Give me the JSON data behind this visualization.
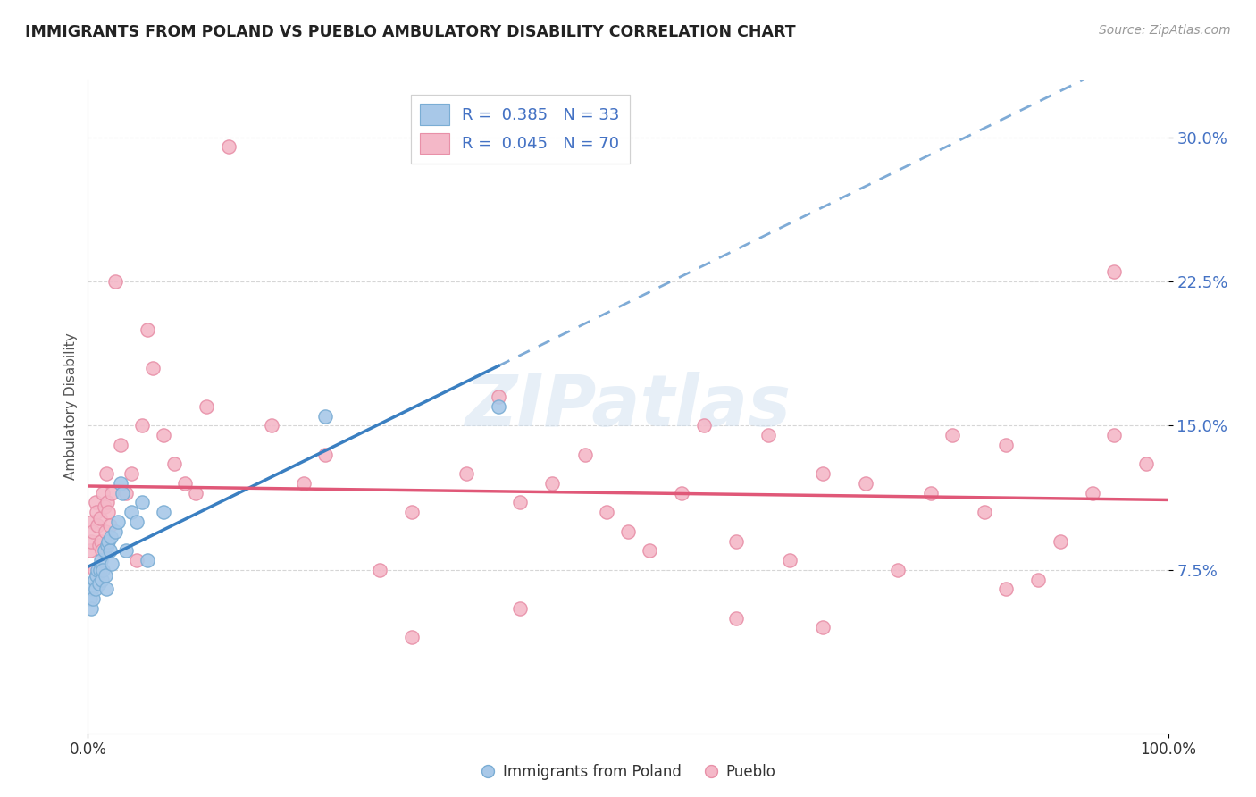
{
  "title": "IMMIGRANTS FROM POLAND VS PUEBLO AMBULATORY DISABILITY CORRELATION CHART",
  "source": "Source: ZipAtlas.com",
  "ylabel": "Ambulatory Disability",
  "legend_blue_label": "R =  0.385   N = 33",
  "legend_pink_label": "R =  0.045   N = 70",
  "legend_bottom_blue": "Immigrants from Poland",
  "legend_bottom_pink": "Pueblo",
  "blue_color": "#a8c8e8",
  "pink_color": "#f4b8c8",
  "blue_scatter_edge": "#7aadd4",
  "pink_scatter_edge": "#e890a8",
  "blue_line_color": "#3a7fc1",
  "pink_line_color": "#e05878",
  "watermark": "ZIPatlas",
  "xlim": [
    0.0,
    100.0
  ],
  "ylim": [
    -1.0,
    33.0
  ],
  "ytick_values": [
    7.5,
    15.0,
    22.5,
    30.0
  ],
  "blue_scatter_x": [
    0.2,
    0.3,
    0.4,
    0.5,
    0.6,
    0.7,
    0.8,
    0.9,
    1.0,
    1.1,
    1.2,
    1.3,
    1.4,
    1.5,
    1.6,
    1.7,
    1.8,
    1.9,
    2.0,
    2.1,
    2.2,
    2.5,
    2.8,
    3.0,
    3.2,
    3.5,
    4.0,
    4.5,
    5.0,
    5.5,
    7.0,
    22.0,
    38.0
  ],
  "blue_scatter_y": [
    6.0,
    5.5,
    6.5,
    6.0,
    7.0,
    6.5,
    7.2,
    7.5,
    6.8,
    7.5,
    8.0,
    7.0,
    7.5,
    8.5,
    7.2,
    6.5,
    8.8,
    9.0,
    8.5,
    9.2,
    7.8,
    9.5,
    10.0,
    12.0,
    11.5,
    8.5,
    10.5,
    10.0,
    11.0,
    8.0,
    10.5,
    15.5,
    16.0
  ],
  "pink_scatter_x": [
    0.2,
    0.3,
    0.4,
    0.5,
    0.6,
    0.7,
    0.8,
    0.9,
    1.0,
    1.1,
    1.2,
    1.3,
    1.4,
    1.5,
    1.6,
    1.7,
    1.8,
    1.9,
    2.0,
    2.2,
    2.5,
    3.0,
    3.5,
    4.0,
    4.5,
    5.0,
    5.5,
    6.0,
    7.0,
    8.0,
    9.0,
    10.0,
    11.0,
    13.0,
    17.0,
    20.0,
    22.0,
    27.0,
    30.0,
    35.0,
    38.0,
    40.0,
    43.0,
    46.0,
    48.0,
    50.0,
    52.0,
    55.0,
    57.0,
    60.0,
    63.0,
    65.0,
    68.0,
    72.0,
    75.0,
    78.0,
    80.0,
    83.0,
    85.0,
    88.0,
    90.0,
    93.0,
    95.0,
    98.0,
    68.0,
    95.0,
    40.0,
    85.0,
    60.0,
    30.0
  ],
  "pink_scatter_y": [
    8.5,
    9.0,
    10.0,
    9.5,
    7.5,
    11.0,
    10.5,
    9.8,
    8.8,
    10.2,
    9.0,
    8.5,
    11.5,
    10.8,
    9.5,
    12.5,
    11.0,
    10.5,
    9.8,
    11.5,
    22.5,
    14.0,
    11.5,
    12.5,
    8.0,
    15.0,
    20.0,
    18.0,
    14.5,
    13.0,
    12.0,
    11.5,
    16.0,
    29.5,
    15.0,
    12.0,
    13.5,
    7.5,
    10.5,
    12.5,
    16.5,
    11.0,
    12.0,
    13.5,
    10.5,
    9.5,
    8.5,
    11.5,
    15.0,
    9.0,
    14.5,
    8.0,
    12.5,
    12.0,
    7.5,
    11.5,
    14.5,
    10.5,
    14.0,
    7.0,
    9.0,
    11.5,
    23.0,
    13.0,
    4.5,
    14.5,
    5.5,
    6.5,
    5.0,
    4.0
  ]
}
